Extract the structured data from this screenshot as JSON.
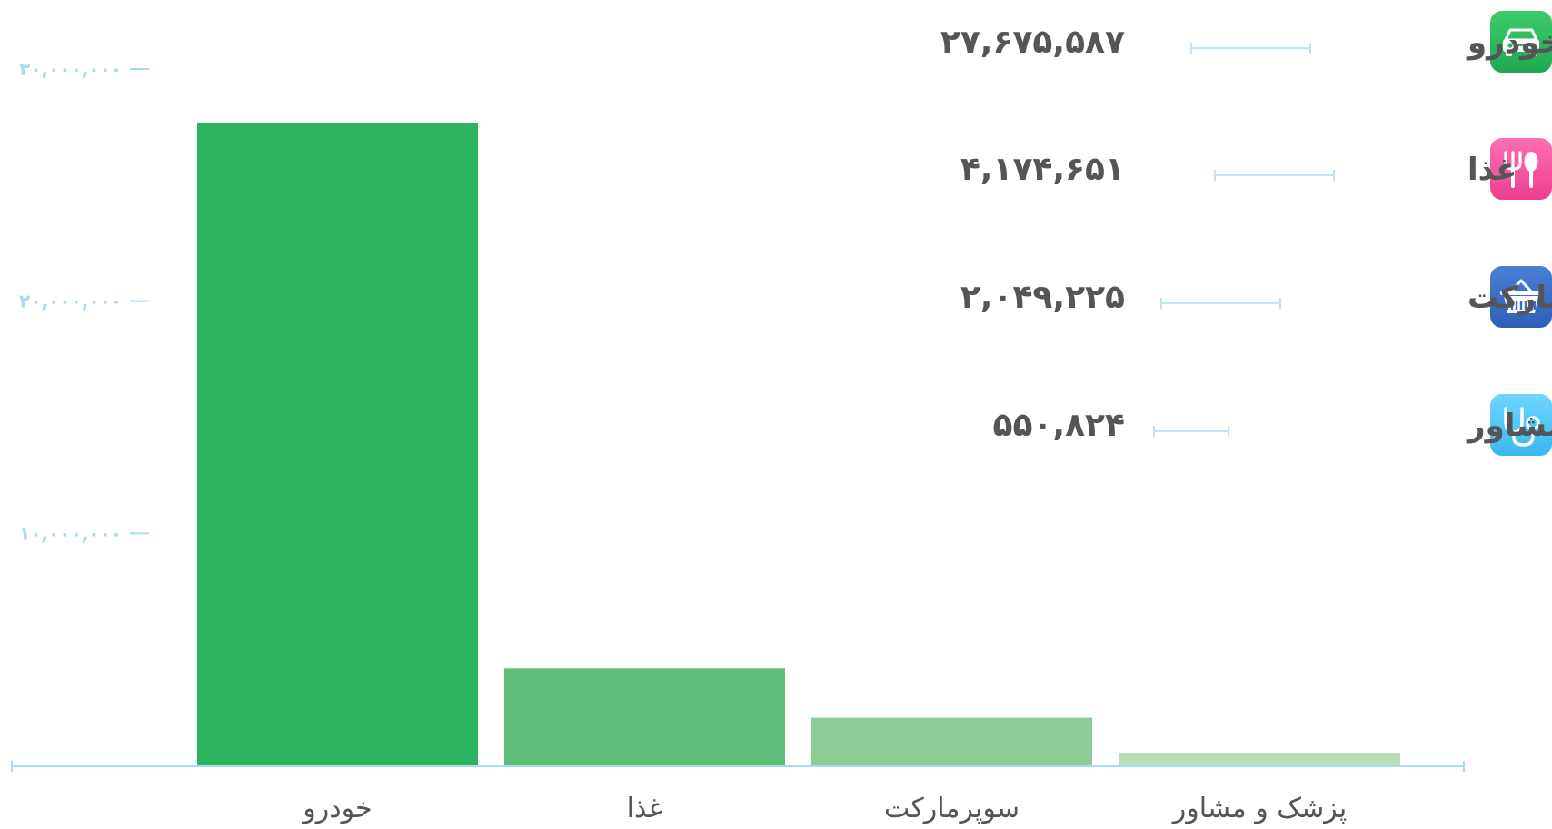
{
  "chart_data": {
    "type": "bar",
    "categories": [
      "خودرو",
      "غذا",
      "سوپرمارکت",
      "پزشک و مشاور"
    ],
    "values": [
      27675587,
      4174651,
      2049225,
      550824
    ],
    "ylim": [
      0,
      30000000
    ],
    "yticks": [
      {
        "value": 10000000,
        "label": "۱۰,۰۰۰,۰۰۰"
      },
      {
        "value": 20000000,
        "label": "۲۰,۰۰۰,۰۰۰"
      },
      {
        "value": 30000000,
        "label": "۳۰,۰۰۰,۰۰۰"
      }
    ],
    "grid": false,
    "bar_colors": [
      "#2db45f",
      "#5fbe78",
      "#8ccb96",
      "#b6dfb9"
    ],
    "legend": [
      {
        "label": "خودرو",
        "value_label": "۲۷,۶۷۵,۵۸۷",
        "icon": "car-icon",
        "icon_color_top": "#3ccb6a",
        "icon_color_bottom": "#21a852"
      },
      {
        "label": "غذا",
        "value_label": "۴,۱۷۴,۶۵۱",
        "icon": "fork-spoon-icon",
        "icon_color_top": "#ff6fb2",
        "icon_color_bottom": "#ec3f8f"
      },
      {
        "label": "سوپرمارکت",
        "value_label": "۲,۰۴۹,۲۲۵",
        "icon": "basket-icon",
        "icon_color_top": "#4a7fd6",
        "icon_color_bottom": "#2d5fb8"
      },
      {
        "label": "پزشک و مشاور",
        "value_label": "۵۵۰,۸۲۴",
        "icon": "stethoscope-icon",
        "icon_color_top": "#6fd6ff",
        "icon_color_bottom": "#3ab7ef"
      }
    ],
    "legend_placement": "top-right"
  }
}
